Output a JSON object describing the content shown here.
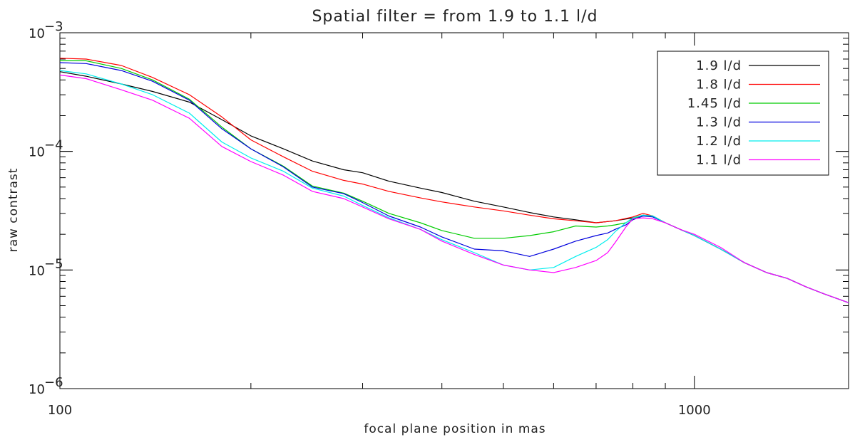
{
  "chart_data": {
    "type": "line",
    "title": "Spatial filter = from 1.9 to 1.1 l/d",
    "xlabel": "focal plane position in mas",
    "ylabel": "raw contrast",
    "xscale": "log",
    "yscale": "log",
    "xlim": [
      100,
      1750
    ],
    "ylim": [
      1e-06,
      0.001
    ],
    "x_ticks": [
      {
        "value": 100,
        "label": "100"
      },
      {
        "value": 1000,
        "label": "1000"
      }
    ],
    "y_ticks": [
      {
        "value": 1e-06,
        "base": "10",
        "exp": "−6"
      },
      {
        "value": 1e-05,
        "base": "10",
        "exp": "−5"
      },
      {
        "value": 0.0001,
        "base": "10",
        "exp": "−4"
      },
      {
        "value": 0.001,
        "base": "10",
        "exp": "−3"
      }
    ],
    "grid": false,
    "legend": "top-right",
    "series": [
      {
        "name": "1.9 l/d",
        "color": "#000000",
        "x": [
          100,
          110,
          125,
          140,
          160,
          180,
          200,
          225,
          250,
          280,
          300,
          330,
          370,
          400,
          450,
          500,
          550,
          600,
          650,
          700,
          750,
          800,
          830,
          860,
          900,
          950,
          1000,
          1100,
          1200,
          1300,
          1400,
          1500,
          1600,
          1750
        ],
        "y": [
          0.00047,
          0.00043,
          0.00037,
          0.00032,
          0.00026,
          0.000185,
          0.000135,
          0.000105,
          8.3e-05,
          7e-05,
          6.6e-05,
          5.6e-05,
          4.9e-05,
          4.5e-05,
          3.8e-05,
          3.4e-05,
          3.05e-05,
          2.8e-05,
          2.65e-05,
          2.5e-05,
          2.6e-05,
          2.75e-05,
          2.9e-05,
          2.85e-05,
          2.5e-05,
          2.2e-05,
          1.95e-05,
          1.5e-05,
          1.15e-05,
          9.5e-06,
          8.5e-06,
          7.2e-06,
          6.3e-06,
          5.3e-06
        ]
      },
      {
        "name": "1.8 l/d",
        "color": "#ff0000",
        "x": [
          100,
          110,
          125,
          140,
          160,
          180,
          200,
          225,
          250,
          280,
          300,
          330,
          370,
          400,
          450,
          500,
          550,
          600,
          650,
          700,
          750,
          800,
          830,
          860,
          900,
          950,
          1000,
          1100,
          1200,
          1300,
          1400,
          1500,
          1600,
          1750
        ],
        "y": [
          0.00061,
          0.0006,
          0.00053,
          0.00042,
          0.0003,
          0.000195,
          0.000125,
          9e-05,
          6.8e-05,
          5.7e-05,
          5.3e-05,
          4.6e-05,
          4.05e-05,
          3.75e-05,
          3.4e-05,
          3.15e-05,
          2.9e-05,
          2.7e-05,
          2.6e-05,
          2.5e-05,
          2.6e-05,
          2.8e-05,
          3e-05,
          2.85e-05,
          2.5e-05,
          2.2e-05,
          1.95e-05,
          1.5e-05,
          1.15e-05,
          9.5e-06,
          8.5e-06,
          7.2e-06,
          6.3e-06,
          5.3e-06
        ]
      },
      {
        "name": "1.45 l/d",
        "color": "#00cc00",
        "x": [
          100,
          110,
          125,
          140,
          160,
          180,
          200,
          225,
          250,
          280,
          300,
          330,
          370,
          400,
          450,
          500,
          550,
          600,
          650,
          700,
          730,
          750,
          780,
          800,
          830,
          860,
          900,
          950,
          1000,
          1100,
          1200,
          1300,
          1400,
          1500,
          1600,
          1750
        ],
        "y": [
          0.00058,
          0.00058,
          0.0005,
          0.0004,
          0.000275,
          0.00016,
          0.000105,
          7.5e-05,
          5.1e-05,
          4.45e-05,
          3.8e-05,
          3e-05,
          2.5e-05,
          2.15e-05,
          1.85e-05,
          1.85e-05,
          1.95e-05,
          2.1e-05,
          2.35e-05,
          2.3e-05,
          2.35e-05,
          2.4e-05,
          2.5e-05,
          2.7e-05,
          2.9e-05,
          2.85e-05,
          2.5e-05,
          2.2e-05,
          1.95e-05,
          1.5e-05,
          1.15e-05,
          9.5e-06,
          8.5e-06,
          7.2e-06,
          6.3e-06,
          5.3e-06
        ]
      },
      {
        "name": "1.3 l/d",
        "color": "#0000dd",
        "x": [
          100,
          110,
          125,
          140,
          160,
          180,
          200,
          225,
          250,
          280,
          300,
          330,
          370,
          400,
          450,
          500,
          550,
          600,
          650,
          700,
          730,
          750,
          780,
          800,
          830,
          860,
          900,
          950,
          1000,
          1100,
          1200,
          1300,
          1400,
          1500,
          1600,
          1750
        ],
        "y": [
          0.00056,
          0.00055,
          0.00048,
          0.00039,
          0.00027,
          0.000155,
          0.000105,
          7.4e-05,
          5e-05,
          4.4e-05,
          3.7e-05,
          2.85e-05,
          2.3e-05,
          1.9e-05,
          1.5e-05,
          1.45e-05,
          1.3e-05,
          1.5e-05,
          1.75e-05,
          1.95e-05,
          2.05e-05,
          2.2e-05,
          2.4e-05,
          2.65e-05,
          2.85e-05,
          2.8e-05,
          2.5e-05,
          2.2e-05,
          1.95e-05,
          1.5e-05,
          1.15e-05,
          9.5e-06,
          8.5e-06,
          7.2e-06,
          6.3e-06,
          5.3e-06
        ]
      },
      {
        "name": "1.2 l/d",
        "color": "#00eeee",
        "x": [
          100,
          110,
          125,
          140,
          160,
          180,
          200,
          225,
          250,
          280,
          300,
          330,
          370,
          400,
          450,
          500,
          550,
          600,
          650,
          700,
          730,
          750,
          780,
          800,
          830,
          860,
          900,
          950,
          1000,
          1100,
          1200,
          1300,
          1400,
          1500,
          1600,
          1750
        ],
        "y": [
          0.00048,
          0.00045,
          0.00037,
          0.0003,
          0.00021,
          0.00012,
          8.8e-05,
          6.8e-05,
          4.9e-05,
          4.2e-05,
          3.5e-05,
          2.75e-05,
          2.2e-05,
          1.8e-05,
          1.4e-05,
          1.1e-05,
          1e-05,
          1.05e-05,
          1.3e-05,
          1.55e-05,
          1.8e-05,
          2.1e-05,
          2.5e-05,
          2.75e-05,
          2.9e-05,
          2.85e-05,
          2.5e-05,
          2.2e-05,
          1.95e-05,
          1.5e-05,
          1.15e-05,
          9.5e-06,
          8.5e-06,
          7.2e-06,
          6.3e-06,
          5.3e-06
        ]
      },
      {
        "name": "1.1 l/d",
        "color": "#ff00ff",
        "x": [
          100,
          110,
          125,
          140,
          160,
          180,
          200,
          225,
          250,
          280,
          300,
          330,
          370,
          400,
          450,
          500,
          550,
          600,
          650,
          700,
          730,
          750,
          780,
          800,
          830,
          860,
          900,
          950,
          1000,
          1100,
          1200,
          1300,
          1400,
          1500,
          1600,
          1750
        ],
        "y": [
          0.00044,
          0.00041,
          0.00033,
          0.00027,
          0.00019,
          0.00011,
          8.2e-05,
          6.3e-05,
          4.6e-05,
          4e-05,
          3.4e-05,
          2.7e-05,
          2.2e-05,
          1.75e-05,
          1.35e-05,
          1.1e-05,
          1e-05,
          9.5e-06,
          1.05e-05,
          1.2e-05,
          1.4e-05,
          1.7e-05,
          2.3e-05,
          2.7e-05,
          2.75e-05,
          2.7e-05,
          2.5e-05,
          2.2e-05,
          2e-05,
          1.55e-05,
          1.15e-05,
          9.5e-06,
          8.5e-06,
          7.2e-06,
          6.3e-06,
          5.3e-06
        ]
      }
    ]
  }
}
